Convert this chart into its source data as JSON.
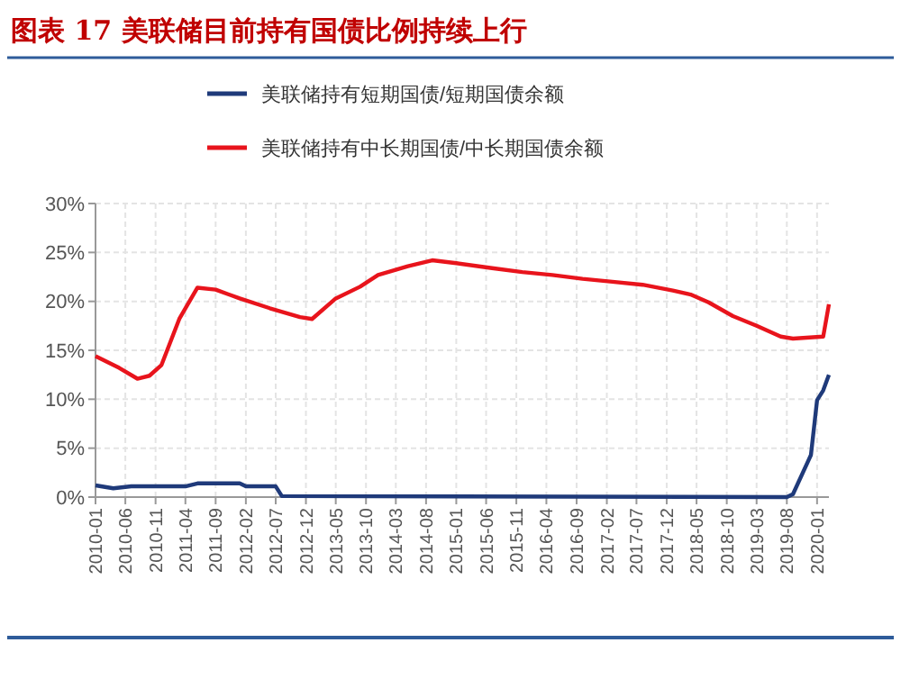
{
  "chart_data": {
    "type": "line",
    "title": "图表 17  美联储目前持有国债比例持续上行",
    "xlim": [
      "2010-01",
      "2020-03"
    ],
    "xticks": [
      "2010-01",
      "2010-06",
      "2010-11",
      "2011-04",
      "2011-09",
      "2012-02",
      "2012-07",
      "2012-12",
      "2013-05",
      "2013-10",
      "2014-03",
      "2014-08",
      "2015-01",
      "2015-06",
      "2015-11",
      "2016-04",
      "2016-09",
      "2017-02",
      "2017-07",
      "2017-12",
      "2018-05",
      "2018-10",
      "2019-03",
      "2019-08",
      "2020-01"
    ],
    "ylim": [
      0,
      30
    ],
    "yticks": [
      {
        "value": 0,
        "label": "0%"
      },
      {
        "value": 5,
        "label": "5%"
      },
      {
        "value": 10,
        "label": "10%"
      },
      {
        "value": 15,
        "label": "15%"
      },
      {
        "value": 20,
        "label": "20%"
      },
      {
        "value": 25,
        "label": "25%"
      },
      {
        "value": 30,
        "label": "30%"
      }
    ],
    "grid": true,
    "legend": "top",
    "line_style": "solid",
    "marker": "none",
    "series": [
      {
        "name": "美联储持有短期国债/短期国债余额",
        "color": "#1f3a7a",
        "x": [
          "2010-01",
          "2010-04",
          "2010-07",
          "2011-04",
          "2011-06",
          "2012-01",
          "2012-02",
          "2012-07",
          "2012-08",
          "2019-08",
          "2019-09",
          "2019-12",
          "2020-01",
          "2020-02",
          "2020-03"
        ],
        "values": [
          1.2,
          0.9,
          1.1,
          1.1,
          1.4,
          1.4,
          1.1,
          1.1,
          0.1,
          0,
          0.3,
          4.3,
          9.9,
          10.9,
          12.5
        ]
      },
      {
        "name": "美联储持有中长期国债/中长期国债余额",
        "color": "#e8141c",
        "x": [
          "2010-01",
          "2010-05",
          "2010-08",
          "2010-10",
          "2010-12",
          "2011-03",
          "2011-06",
          "2011-09",
          "2012-01",
          "2012-06",
          "2012-11",
          "2013-01",
          "2013-05",
          "2013-09",
          "2013-12",
          "2014-05",
          "2014-09",
          "2015-01",
          "2015-07",
          "2015-12",
          "2016-05",
          "2016-10",
          "2017-03",
          "2017-08",
          "2018-01",
          "2018-04",
          "2018-07",
          "2018-11",
          "2019-03",
          "2019-07",
          "2019-09",
          "2020-02",
          "2020-03"
        ],
        "values": [
          14.4,
          13.2,
          12.1,
          12.4,
          13.5,
          18.2,
          21.4,
          21.2,
          20.3,
          19.3,
          18.4,
          18.2,
          20.3,
          21.5,
          22.7,
          23.6,
          24.2,
          23.9,
          23.4,
          23.0,
          22.7,
          22.3,
          22.0,
          21.7,
          21.1,
          20.7,
          19.9,
          18.5,
          17.5,
          16.4,
          16.2,
          16.4,
          19.7
        ]
      }
    ]
  }
}
